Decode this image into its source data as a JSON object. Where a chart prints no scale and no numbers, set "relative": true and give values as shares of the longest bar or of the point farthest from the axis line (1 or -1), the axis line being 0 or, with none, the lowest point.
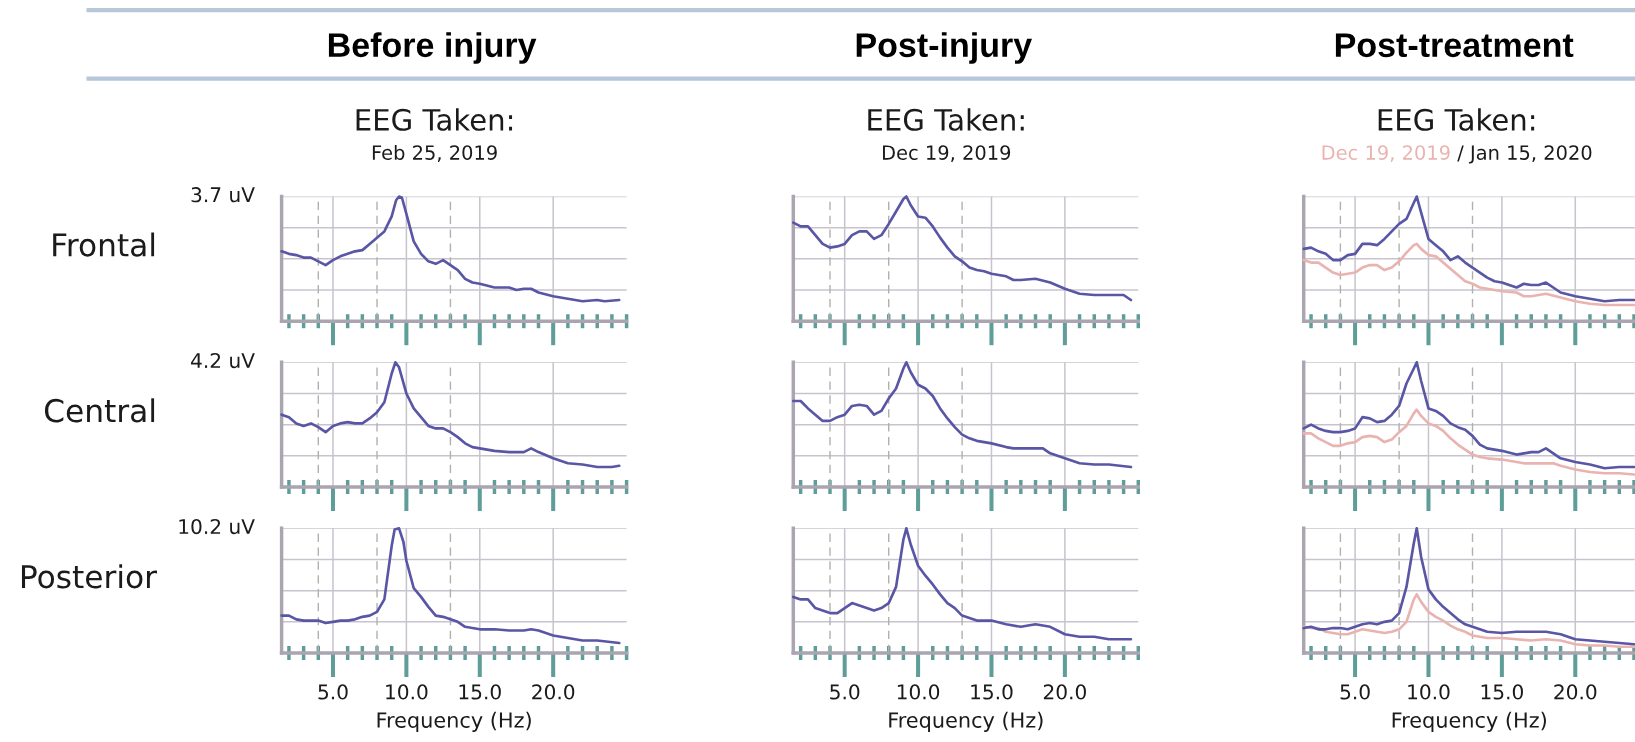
{
  "chart_data": [
    {
      "type": "line",
      "title": "Before injury",
      "subtitle": "EEG Taken:\nFeb 25, 2019",
      "ylabel": "Frontal",
      "annotations": [
        "3.7 uV"
      ],
      "relative": true,
      "grid": true,
      "tick_labels": false,
      "xlim": [
        1.5,
        25
      ],
      "xticks": [
        {
          "value": 5,
          "label": null
        },
        {
          "value": 10,
          "label": null
        },
        {
          "value": 15,
          "label": null
        },
        {
          "value": 20,
          "label": null
        }
      ],
      "ref_lines": [
        {
          "axis": "x",
          "value": 4,
          "color": "#b0b0b0",
          "line_style": "dashed"
        },
        {
          "axis": "x",
          "value": 8,
          "color": "#b0b0b0",
          "line_style": "dashed"
        },
        {
          "axis": "x",
          "value": 13,
          "color": "#b0b0b0",
          "line_style": "dashed"
        }
      ],
      "series": [
        {
          "color": "#5856a5",
          "x": [
            1.5,
            2,
            2.5,
            3,
            3.5,
            4,
            4.5,
            5,
            5.5,
            6,
            6.5,
            7,
            7.5,
            8,
            8.5,
            9,
            9.3,
            9.5,
            9.7,
            10,
            10.5,
            11,
            11.5,
            12,
            12.5,
            13,
            13.5,
            14,
            14.5,
            15,
            16,
            17,
            17.5,
            18,
            18.5,
            19,
            20,
            21,
            22,
            23,
            23.5,
            24.5
          ],
          "values": [
            0.56,
            0.54,
            0.53,
            0.51,
            0.51,
            0.48,
            0.45,
            0.49,
            0.52,
            0.54,
            0.56,
            0.57,
            0.62,
            0.67,
            0.72,
            0.84,
            0.97,
            1.0,
            0.99,
            0.86,
            0.64,
            0.54,
            0.48,
            0.46,
            0.49,
            0.45,
            0.41,
            0.34,
            0.31,
            0.3,
            0.27,
            0.27,
            0.25,
            0.26,
            0.26,
            0.23,
            0.2,
            0.18,
            0.16,
            0.17,
            0.16,
            0.17
          ]
        }
      ]
    },
    {
      "type": "line",
      "title": "Post-injury",
      "subtitle": "EEG Taken:\nDec 19, 2019",
      "relative": true,
      "grid": true,
      "tick_labels": false,
      "xlim": [
        1.5,
        25
      ],
      "xticks": [
        {
          "value": 5,
          "label": null
        },
        {
          "value": 10,
          "label": null
        },
        {
          "value": 15,
          "label": null
        },
        {
          "value": 20,
          "label": null
        }
      ],
      "ref_lines": [
        {
          "axis": "x",
          "value": 4,
          "color": "#b0b0b0",
          "line_style": "dashed"
        },
        {
          "axis": "x",
          "value": 8,
          "color": "#b0b0b0",
          "line_style": "dashed"
        },
        {
          "axis": "x",
          "value": 13,
          "color": "#b0b0b0",
          "line_style": "dashed"
        }
      ],
      "series": [
        {
          "color": "#5856a5",
          "x": [
            1.5,
            2,
            2.5,
            3,
            3.5,
            4,
            4.5,
            5,
            5.5,
            6,
            6.5,
            7,
            7.5,
            8,
            8.5,
            9,
            9.2,
            9.5,
            10,
            10.5,
            11,
            11.5,
            12,
            12.5,
            13,
            13.5,
            14,
            14.5,
            15,
            16,
            16.5,
            17,
            18,
            19,
            20,
            21,
            22,
            23,
            24,
            24.5
          ],
          "values": [
            0.79,
            0.76,
            0.76,
            0.69,
            0.62,
            0.59,
            0.6,
            0.62,
            0.69,
            0.72,
            0.72,
            0.66,
            0.69,
            0.78,
            0.88,
            0.98,
            1.0,
            0.93,
            0.84,
            0.83,
            0.76,
            0.67,
            0.59,
            0.52,
            0.48,
            0.43,
            0.41,
            0.4,
            0.38,
            0.36,
            0.33,
            0.33,
            0.34,
            0.31,
            0.26,
            0.22,
            0.21,
            0.21,
            0.21,
            0.17
          ]
        }
      ]
    },
    {
      "type": "line",
      "title": "Post-treatment",
      "subtitle": "EEG Taken:",
      "legend": "top",
      "annotations": [
        "/ Jan 15, 2020"
      ],
      "relative": true,
      "grid": true,
      "tick_labels": false,
      "xlim": [
        1.5,
        24.05
      ],
      "xticks": [
        {
          "value": 5,
          "label": null
        },
        {
          "value": 10,
          "label": null
        },
        {
          "value": 15,
          "label": null
        },
        {
          "value": 20,
          "label": null
        }
      ],
      "ref_lines": [
        {
          "axis": "x",
          "value": 4,
          "color": "#b0b0b0",
          "line_style": "dashed"
        },
        {
          "axis": "x",
          "value": 8,
          "color": "#b0b0b0",
          "line_style": "dashed"
        },
        {
          "axis": "x",
          "value": 13,
          "color": "#b0b0b0",
          "line_style": "dashed"
        }
      ],
      "series": [
        {
          "name": "Dec 19, 2019",
          "color": "#e9b3b0",
          "x": [
            1.5,
            2,
            2.5,
            3,
            3.5,
            4,
            4.5,
            5,
            5.5,
            6,
            6.5,
            7,
            7.5,
            8,
            8.5,
            9,
            9.2,
            9.5,
            10,
            10.5,
            11,
            11.5,
            12,
            12.5,
            13,
            13.5,
            14,
            14.5,
            15,
            16,
            16.5,
            17,
            18,
            19,
            20,
            21,
            22,
            23,
            24
          ],
          "values": [
            0.49,
            0.47,
            0.47,
            0.43,
            0.39,
            0.37,
            0.38,
            0.39,
            0.43,
            0.45,
            0.45,
            0.41,
            0.43,
            0.48,
            0.55,
            0.61,
            0.62,
            0.58,
            0.53,
            0.52,
            0.47,
            0.42,
            0.37,
            0.32,
            0.3,
            0.27,
            0.26,
            0.25,
            0.24,
            0.23,
            0.2,
            0.2,
            0.22,
            0.19,
            0.16,
            0.14,
            0.13,
            0.13,
            0.13
          ]
        },
        {
          "color": "#5856a5",
          "x": [
            1.5,
            2,
            2.5,
            3,
            3.5,
            4,
            4.5,
            5,
            5.5,
            6,
            6.5,
            7,
            7.5,
            8,
            8.5,
            9,
            9.2,
            9.5,
            10,
            10.5,
            11,
            11.5,
            12,
            12.5,
            13,
            13.5,
            14,
            14.5,
            15,
            16,
            16.5,
            17,
            17.5,
            18,
            18.5,
            19,
            20,
            21,
            22,
            23,
            24
          ],
          "values": [
            0.58,
            0.59,
            0.56,
            0.54,
            0.49,
            0.49,
            0.53,
            0.54,
            0.62,
            0.62,
            0.61,
            0.66,
            0.72,
            0.78,
            0.82,
            0.95,
            1.0,
            0.87,
            0.66,
            0.61,
            0.56,
            0.49,
            0.52,
            0.47,
            0.43,
            0.39,
            0.35,
            0.32,
            0.31,
            0.27,
            0.3,
            0.29,
            0.29,
            0.31,
            0.27,
            0.23,
            0.2,
            0.18,
            0.16,
            0.17,
            0.17
          ]
        }
      ]
    },
    {
      "type": "line",
      "ylabel": "Central",
      "annotations": [
        "4.2 uV"
      ],
      "relative": true,
      "grid": true,
      "tick_labels": false,
      "xlim": [
        1.5,
        25
      ],
      "xticks": [
        {
          "value": 5,
          "label": null
        },
        {
          "value": 10,
          "label": null
        },
        {
          "value": 15,
          "label": null
        },
        {
          "value": 20,
          "label": null
        }
      ],
      "ref_lines": [
        {
          "axis": "x",
          "value": 4,
          "color": "#b0b0b0",
          "line_style": "dashed"
        },
        {
          "axis": "x",
          "value": 8,
          "color": "#b0b0b0",
          "line_style": "dashed"
        },
        {
          "axis": "x",
          "value": 13,
          "color": "#b0b0b0",
          "line_style": "dashed"
        }
      ],
      "series": [
        {
          "color": "#5856a5",
          "x": [
            1.5,
            2,
            2.5,
            3,
            3.5,
            4,
            4.5,
            5,
            5.5,
            6,
            6.5,
            7,
            7.5,
            8,
            8.5,
            9,
            9.25,
            9.5,
            10,
            10.5,
            11,
            11.5,
            12,
            12.5,
            13,
            13.5,
            14,
            14.5,
            15,
            16,
            17,
            18,
            18.5,
            19,
            20,
            21,
            22,
            23,
            24,
            24.5
          ],
          "values": [
            0.58,
            0.56,
            0.51,
            0.49,
            0.51,
            0.48,
            0.44,
            0.49,
            0.51,
            0.52,
            0.51,
            0.51,
            0.55,
            0.6,
            0.68,
            0.91,
            1.0,
            0.96,
            0.75,
            0.63,
            0.56,
            0.49,
            0.47,
            0.47,
            0.44,
            0.4,
            0.35,
            0.32,
            0.31,
            0.29,
            0.28,
            0.28,
            0.31,
            0.28,
            0.23,
            0.19,
            0.18,
            0.16,
            0.16,
            0.17
          ]
        }
      ]
    },
    {
      "type": "line",
      "relative": true,
      "grid": true,
      "tick_labels": false,
      "xlim": [
        1.5,
        25
      ],
      "xticks": [
        {
          "value": 5,
          "label": null
        },
        {
          "value": 10,
          "label": null
        },
        {
          "value": 15,
          "label": null
        },
        {
          "value": 20,
          "label": null
        }
      ],
      "ref_lines": [
        {
          "axis": "x",
          "value": 4,
          "color": "#b0b0b0",
          "line_style": "dashed"
        },
        {
          "axis": "x",
          "value": 8,
          "color": "#b0b0b0",
          "line_style": "dashed"
        },
        {
          "axis": "x",
          "value": 13,
          "color": "#b0b0b0",
          "line_style": "dashed"
        }
      ],
      "series": [
        {
          "color": "#5856a5",
          "x": [
            1.5,
            2,
            2.5,
            3,
            3.5,
            4,
            4.5,
            5,
            5.5,
            6,
            6.5,
            7,
            7.5,
            8,
            8.5,
            9,
            9.2,
            9.5,
            10,
            10.5,
            11,
            11.5,
            12,
            12.5,
            13,
            13.5,
            14,
            15,
            16,
            16.5,
            17.5,
            18.5,
            19,
            20,
            21,
            22,
            23,
            24.5
          ],
          "values": [
            0.69,
            0.69,
            0.63,
            0.58,
            0.53,
            0.53,
            0.56,
            0.58,
            0.65,
            0.66,
            0.65,
            0.58,
            0.61,
            0.71,
            0.79,
            0.95,
            1.0,
            0.92,
            0.82,
            0.79,
            0.73,
            0.63,
            0.55,
            0.48,
            0.42,
            0.39,
            0.37,
            0.35,
            0.32,
            0.31,
            0.31,
            0.31,
            0.27,
            0.23,
            0.19,
            0.18,
            0.18,
            0.16
          ]
        }
      ]
    },
    {
      "type": "line",
      "relative": true,
      "grid": true,
      "tick_labels": false,
      "xlim": [
        1.5,
        24.05
      ],
      "xticks": [
        {
          "value": 5,
          "label": null
        },
        {
          "value": 10,
          "label": null
        },
        {
          "value": 15,
          "label": null
        },
        {
          "value": 20,
          "label": null
        }
      ],
      "ref_lines": [
        {
          "axis": "x",
          "value": 4,
          "color": "#b0b0b0",
          "line_style": "dashed"
        },
        {
          "axis": "x",
          "value": 8,
          "color": "#b0b0b0",
          "line_style": "dashed"
        },
        {
          "axis": "x",
          "value": 13,
          "color": "#b0b0b0",
          "line_style": "dashed"
        }
      ],
      "series": [
        {
          "color": "#e9b3b0",
          "x": [
            1.5,
            2,
            2.5,
            3,
            3.5,
            4,
            4.5,
            5,
            5.5,
            6,
            6.5,
            7,
            7.5,
            8,
            8.5,
            9,
            9.2,
            9.5,
            10,
            10.5,
            11,
            11.5,
            12,
            12.5,
            13,
            13.5,
            14,
            15,
            16,
            16.5,
            17.5,
            18.5,
            19,
            20,
            21,
            22,
            23,
            24
          ],
          "values": [
            0.43,
            0.43,
            0.39,
            0.36,
            0.33,
            0.33,
            0.35,
            0.36,
            0.4,
            0.41,
            0.4,
            0.36,
            0.38,
            0.44,
            0.49,
            0.59,
            0.62,
            0.57,
            0.51,
            0.49,
            0.45,
            0.39,
            0.34,
            0.3,
            0.26,
            0.24,
            0.23,
            0.22,
            0.2,
            0.19,
            0.19,
            0.19,
            0.17,
            0.14,
            0.12,
            0.11,
            0.11,
            0.1
          ]
        },
        {
          "color": "#5856a5",
          "x": [
            1.5,
            2,
            2.5,
            3,
            3.5,
            4,
            4.5,
            5,
            5.5,
            6,
            6.5,
            7,
            7.5,
            8,
            8.5,
            9,
            9.2,
            9.5,
            10,
            10.5,
            11,
            11.5,
            12,
            12.5,
            13,
            13.5,
            14,
            14.5,
            15,
            16,
            16.5,
            17,
            17.5,
            18,
            18.5,
            19,
            20,
            21,
            22,
            23,
            24
          ],
          "values": [
            0.47,
            0.5,
            0.47,
            0.45,
            0.44,
            0.44,
            0.45,
            0.47,
            0.56,
            0.55,
            0.52,
            0.53,
            0.58,
            0.65,
            0.83,
            0.95,
            1.0,
            0.85,
            0.63,
            0.61,
            0.57,
            0.51,
            0.48,
            0.46,
            0.41,
            0.34,
            0.31,
            0.3,
            0.29,
            0.26,
            0.27,
            0.28,
            0.28,
            0.31,
            0.27,
            0.23,
            0.2,
            0.18,
            0.15,
            0.16,
            0.16
          ]
        }
      ]
    },
    {
      "type": "line",
      "ylabel": "Posterior",
      "xlabel": "Frequency (Hz)",
      "annotations": [
        "10.2 uV"
      ],
      "relative": true,
      "grid": true,
      "tick_labels": "x",
      "xlim": [
        1.5,
        25
      ],
      "xticks": [
        {
          "value": 5,
          "label": "5.0"
        },
        {
          "value": 10,
          "label": "10.0"
        },
        {
          "value": 15,
          "label": "15.0"
        },
        {
          "value": 20,
          "label": "20.0"
        }
      ],
      "ref_lines": [
        {
          "axis": "x",
          "value": 4,
          "color": "#b0b0b0",
          "line_style": "dashed"
        },
        {
          "axis": "x",
          "value": 8,
          "color": "#b0b0b0",
          "line_style": "dashed"
        },
        {
          "axis": "x",
          "value": 13,
          "color": "#b0b0b0",
          "line_style": "dashed"
        }
      ],
      "series": [
        {
          "color": "#5856a5",
          "x": [
            1.5,
            2,
            2.5,
            3,
            3.5,
            4,
            4.5,
            5,
            5.5,
            6,
            6.5,
            7,
            7.5,
            8,
            8.5,
            9,
            9.2,
            9.5,
            9.8,
            10,
            10.5,
            11,
            11.5,
            12,
            12.5,
            13,
            13.5,
            14,
            15,
            16,
            17,
            18,
            18.5,
            19,
            20,
            21,
            22,
            23,
            24.5
          ],
          "values": [
            0.3,
            0.3,
            0.27,
            0.26,
            0.26,
            0.26,
            0.24,
            0.25,
            0.26,
            0.26,
            0.27,
            0.29,
            0.3,
            0.33,
            0.43,
            0.86,
            0.99,
            1.0,
            0.89,
            0.74,
            0.52,
            0.45,
            0.37,
            0.3,
            0.29,
            0.27,
            0.25,
            0.21,
            0.19,
            0.19,
            0.18,
            0.18,
            0.19,
            0.18,
            0.14,
            0.12,
            0.1,
            0.1,
            0.08
          ]
        }
      ]
    },
    {
      "type": "line",
      "xlabel": "Frequency (Hz)",
      "relative": true,
      "grid": true,
      "tick_labels": "x",
      "xlim": [
        1.5,
        25
      ],
      "xticks": [
        {
          "value": 5,
          "label": "5.0"
        },
        {
          "value": 10,
          "label": "10.0"
        },
        {
          "value": 15,
          "label": "15.0"
        },
        {
          "value": 20,
          "label": "20.0"
        }
      ],
      "ref_lines": [
        {
          "axis": "x",
          "value": 4,
          "color": "#b0b0b0",
          "line_style": "dashed"
        },
        {
          "axis": "x",
          "value": 8,
          "color": "#b0b0b0",
          "line_style": "dashed"
        },
        {
          "axis": "x",
          "value": 13,
          "color": "#b0b0b0",
          "line_style": "dashed"
        }
      ],
      "series": [
        {
          "color": "#5856a5",
          "x": [
            1.5,
            2,
            2.5,
            3,
            3.5,
            4,
            4.5,
            5,
            5.5,
            6,
            6.5,
            7,
            7.5,
            8,
            8.5,
            9,
            9.2,
            9.5,
            10,
            10.5,
            11,
            11.5,
            12,
            12.5,
            13,
            13.5,
            14,
            15,
            16,
            17,
            18,
            19,
            20,
            21,
            22,
            23,
            24.5
          ],
          "values": [
            0.45,
            0.43,
            0.43,
            0.36,
            0.34,
            0.32,
            0.32,
            0.36,
            0.4,
            0.38,
            0.36,
            0.34,
            0.36,
            0.4,
            0.53,
            0.91,
            1.0,
            0.87,
            0.7,
            0.62,
            0.55,
            0.47,
            0.4,
            0.36,
            0.3,
            0.28,
            0.26,
            0.26,
            0.23,
            0.21,
            0.23,
            0.21,
            0.15,
            0.13,
            0.13,
            0.11,
            0.11
          ]
        }
      ]
    },
    {
      "type": "line",
      "xlabel": "Frequency (Hz)",
      "relative": true,
      "grid": true,
      "tick_labels": "x",
      "xlim": [
        1.5,
        24.05
      ],
      "xticks": [
        {
          "value": 5,
          "label": "5.0"
        },
        {
          "value": 10,
          "label": "10.0"
        },
        {
          "value": 15,
          "label": "15.0"
        },
        {
          "value": 20,
          "label": "20.0"
        }
      ],
      "ref_lines": [
        {
          "axis": "x",
          "value": 4,
          "color": "#b0b0b0",
          "line_style": "dashed"
        },
        {
          "axis": "x",
          "value": 8,
          "color": "#b0b0b0",
          "line_style": "dashed"
        },
        {
          "axis": "x",
          "value": 13,
          "color": "#b0b0b0",
          "line_style": "dashed"
        }
      ],
      "series": [
        {
          "color": "#e9b3b0",
          "x": [
            1.5,
            2,
            2.5,
            3,
            3.5,
            4,
            4.5,
            5,
            5.5,
            6,
            6.5,
            7,
            7.5,
            8,
            8.5,
            9,
            9.2,
            9.5,
            10,
            10.5,
            11,
            11.5,
            12,
            12.5,
            13,
            13.5,
            14,
            15,
            16,
            17,
            18,
            19,
            20,
            21,
            22,
            23,
            24
          ],
          "values": [
            0.21,
            0.2,
            0.2,
            0.17,
            0.16,
            0.15,
            0.15,
            0.17,
            0.19,
            0.18,
            0.17,
            0.16,
            0.17,
            0.19,
            0.25,
            0.43,
            0.47,
            0.41,
            0.33,
            0.29,
            0.26,
            0.22,
            0.19,
            0.17,
            0.14,
            0.13,
            0.12,
            0.12,
            0.11,
            0.1,
            0.11,
            0.1,
            0.07,
            0.06,
            0.06,
            0.05,
            0.05
          ]
        },
        {
          "color": "#5856a5",
          "x": [
            1.5,
            2,
            2.5,
            3,
            3.5,
            4,
            4.5,
            5,
            5.5,
            6,
            6.5,
            7,
            7.5,
            8,
            8.5,
            9,
            9.2,
            9.5,
            10,
            10.5,
            11,
            11.5,
            12,
            12.5,
            13,
            13.5,
            14,
            15,
            16,
            17,
            18,
            19,
            20,
            21,
            22,
            23,
            24
          ],
          "values": [
            0.2,
            0.21,
            0.19,
            0.19,
            0.2,
            0.2,
            0.19,
            0.21,
            0.23,
            0.24,
            0.23,
            0.25,
            0.26,
            0.32,
            0.53,
            0.88,
            1.0,
            0.77,
            0.51,
            0.43,
            0.37,
            0.32,
            0.27,
            0.23,
            0.21,
            0.19,
            0.17,
            0.16,
            0.17,
            0.17,
            0.17,
            0.15,
            0.11,
            0.1,
            0.09,
            0.08,
            0.07
          ]
        }
      ]
    }
  ]
}
